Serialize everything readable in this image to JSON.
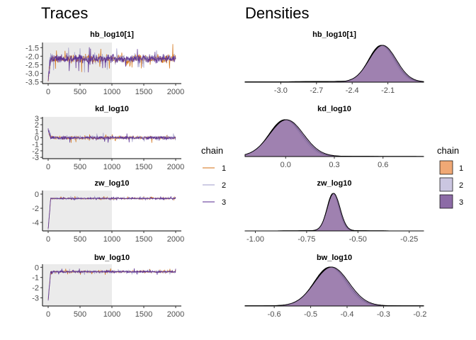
{
  "sections": {
    "traces_title": "Traces",
    "densities_title": "Densities"
  },
  "colors": {
    "chain_1": "#d36f10",
    "chain_2": "#9e9ac8",
    "chain_3": "#54278f",
    "chain_1_fill": "#f0a875",
    "chain_2_fill": "#cbc6e1",
    "chain_3_fill": "#8c6ba6",
    "warmup_shade": "#ebebeb"
  },
  "legend": {
    "title": "chain",
    "entries": [
      "1",
      "2",
      "3"
    ]
  },
  "chart_data": [
    {
      "type": "line",
      "panel": "trace",
      "title": "hb_log10[1]",
      "xlim": [
        0,
        2000
      ],
      "ylim": [
        -3.6,
        -1.2
      ],
      "xticks": [
        0,
        500,
        1000,
        1500,
        2000
      ],
      "yticks": [
        -1.5,
        -2.0,
        -2.5,
        -3.0,
        -3.5
      ],
      "ytick_labels": [
        "-1.5",
        "-2.0",
        "-2.5",
        "-3.0",
        "-3.5"
      ],
      "warmup_end": 1000,
      "center": -2.15,
      "spread": 0.12,
      "init": -3.4,
      "series": [
        {
          "name": "1"
        },
        {
          "name": "2"
        },
        {
          "name": "3"
        }
      ]
    },
    {
      "type": "line",
      "panel": "trace",
      "title": "kd_log10",
      "xlim": [
        0,
        2000
      ],
      "ylim": [
        -3.2,
        3.2
      ],
      "xticks": [
        0,
        500,
        1000,
        1500,
        2000
      ],
      "yticks": [
        3,
        2,
        1,
        0,
        -1,
        -2,
        -3
      ],
      "ytick_labels": [
        "3",
        "2",
        "1",
        "0",
        "-1",
        "-2",
        "-3"
      ],
      "warmup_end": 1000,
      "center": 0.0,
      "spread": 0.12,
      "init": 1.2,
      "series": [
        {
          "name": "1"
        },
        {
          "name": "2"
        },
        {
          "name": "3"
        }
      ]
    },
    {
      "type": "line",
      "panel": "trace",
      "title": "zw_log10",
      "xlim": [
        0,
        2000
      ],
      "ylim": [
        -5.2,
        0.5
      ],
      "xticks": [
        0,
        500,
        1000,
        1500,
        2000
      ],
      "yticks": [
        0,
        -2,
        -4
      ],
      "ytick_labels": [
        "0",
        "-2",
        "-4"
      ],
      "warmup_end": 1000,
      "center": -0.62,
      "spread": 0.05,
      "init": -5.0,
      "series": [
        {
          "name": "1"
        },
        {
          "name": "2"
        },
        {
          "name": "3"
        }
      ]
    },
    {
      "type": "line",
      "panel": "trace",
      "title": "bw_log10",
      "xlim": [
        0,
        2000
      ],
      "ylim": [
        -3.8,
        0.3
      ],
      "xticks": [
        0,
        500,
        1000,
        1500,
        2000
      ],
      "yticks": [
        0,
        -1,
        -2,
        -3
      ],
      "ytick_labels": [
        "0",
        "-1",
        "-2",
        "-3"
      ],
      "warmup_end": 1000,
      "center": -0.44,
      "spread": 0.05,
      "init": -3.2,
      "series": [
        {
          "name": "1"
        },
        {
          "name": "2"
        },
        {
          "name": "3"
        }
      ]
    },
    {
      "type": "area",
      "panel": "density",
      "title": "hb_log10[1]",
      "xlim": [
        -3.3,
        -1.8
      ],
      "xticks": [
        -3.0,
        -2.7,
        -2.4,
        -2.1
      ],
      "xtick_labels": [
        "-3.0",
        "-2.7",
        "-2.4",
        "-2.1"
      ],
      "mean": -2.15,
      "sd": 0.11,
      "skew_left": 0.35,
      "series": [
        {
          "name": "1"
        },
        {
          "name": "2"
        },
        {
          "name": "3"
        }
      ]
    },
    {
      "type": "area",
      "panel": "density",
      "title": "kd_log10",
      "xlim": [
        -0.25,
        0.85
      ],
      "xticks": [
        0.0,
        0.3,
        0.6
      ],
      "xtick_labels": [
        "0.0",
        "0.3",
        "0.6"
      ],
      "mean": 0.0,
      "sd": 0.1,
      "skew_left": 0.0,
      "series": [
        {
          "name": "1"
        },
        {
          "name": "2"
        },
        {
          "name": "3"
        }
      ]
    },
    {
      "type": "area",
      "panel": "density",
      "title": "zw_log10",
      "xlim": [
        -1.05,
        -0.18
      ],
      "xticks": [
        -1.0,
        -0.75,
        -0.5,
        -0.25
      ],
      "xtick_labels": [
        "-1.00",
        "-0.75",
        "-0.50",
        "-0.25"
      ],
      "mean": -0.62,
      "sd": 0.03,
      "skew_left": 0.0,
      "series": [
        {
          "name": "1"
        },
        {
          "name": "2"
        },
        {
          "name": "3"
        }
      ]
    },
    {
      "type": "area",
      "panel": "density",
      "title": "bw_log10",
      "xlim": [
        -0.68,
        -0.19
      ],
      "xticks": [
        -0.6,
        -0.5,
        -0.4,
        -0.3,
        -0.2
      ],
      "xtick_labels": [
        "-0.6",
        "-0.5",
        "-0.4",
        "-0.3",
        "-0.2"
      ],
      "mean": -0.445,
      "sd": 0.045,
      "skew_left": 0.0,
      "series": [
        {
          "name": "1"
        },
        {
          "name": "2"
        },
        {
          "name": "3"
        }
      ]
    }
  ]
}
